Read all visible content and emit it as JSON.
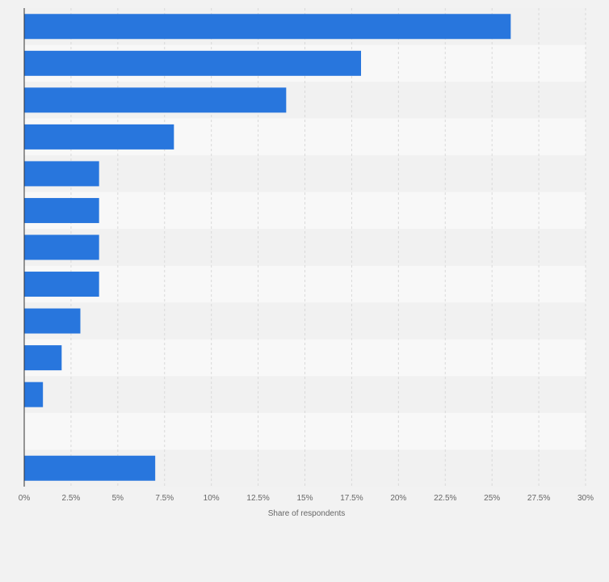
{
  "chart_data": {
    "type": "bar",
    "orientation": "horizontal",
    "categories": [
      "",
      "",
      "",
      "",
      "",
      "",
      "",
      "",
      "",
      "",
      "",
      "",
      ""
    ],
    "values": [
      26,
      18,
      14,
      8,
      4,
      4,
      4,
      4,
      3,
      2,
      1,
      0,
      7
    ],
    "title": "",
    "xlabel": "Share of respondents",
    "ylabel": "",
    "xlim": [
      0,
      30
    ],
    "x_ticks": [
      0,
      2.5,
      5,
      7.5,
      10,
      12.5,
      15,
      17.5,
      20,
      22.5,
      25,
      27.5,
      30
    ],
    "x_tick_labels": [
      "0%",
      "2.5%",
      "5%",
      "7.5%",
      "10%",
      "12.5%",
      "15%",
      "17.5%",
      "20%",
      "22.5%",
      "25%",
      "27.5%",
      "30%"
    ],
    "grid": true,
    "legend": "none",
    "colors": {
      "bar": "#2876dd",
      "background": "#f2f2f2",
      "band_light": "#f8f8f8",
      "band_dark": "#f1f1f1",
      "grid": "#d9d9d9",
      "axis": "#333333",
      "text": "#666666"
    }
  }
}
